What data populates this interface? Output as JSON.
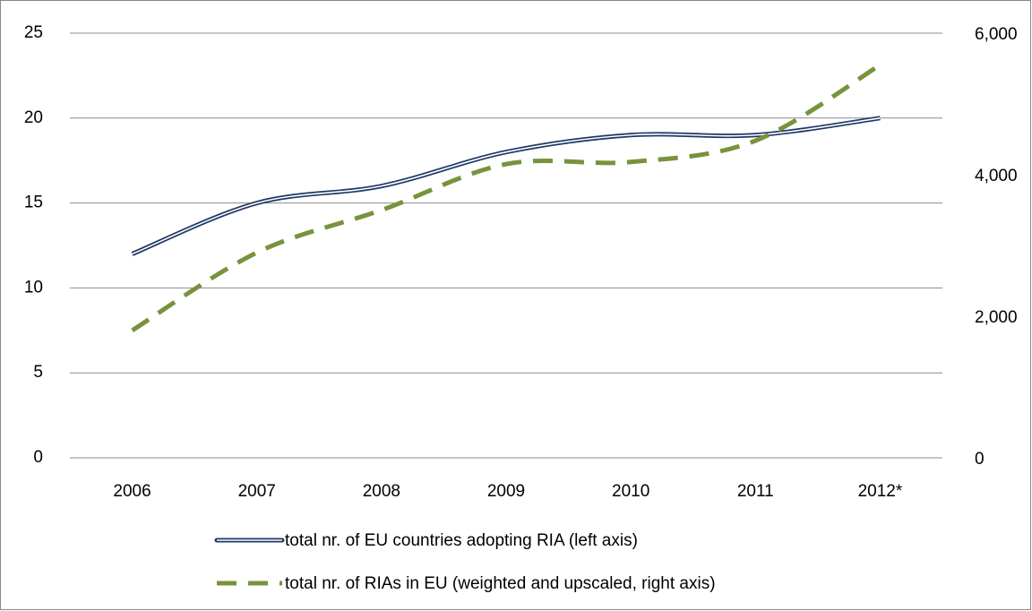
{
  "chart_data": {
    "type": "line",
    "categories": [
      "2006",
      "2007",
      "2008",
      "2009",
      "2010",
      "2011",
      "2012*"
    ],
    "series": [
      {
        "name": "total nr. of EU countries adopting RIA (left axis)",
        "color": "#1f3864",
        "values": [
          12,
          15,
          16,
          18,
          19,
          19,
          20
        ]
      },
      {
        "name": "total nr. of RIAs in EU (weighted and upscaled, right axis)",
        "color": "#77933c",
        "axis": "y2",
        "values": [
          1800,
          2900,
          3500,
          4150,
          4180,
          4480,
          5550
        ]
      }
    ],
    "ylim": [
      0,
      25
    ],
    "yticks": [
      0,
      5,
      10,
      15,
      20,
      25
    ],
    "y2lim": [
      0,
      6000
    ],
    "y2ticks": [
      0,
      {
        "value": 2000,
        "label": "2,000"
      },
      {
        "value": 4000,
        "label": "4,000"
      },
      {
        "value": 6000,
        "label": "6,000"
      }
    ],
    "grid": true,
    "legend": "bottom"
  }
}
